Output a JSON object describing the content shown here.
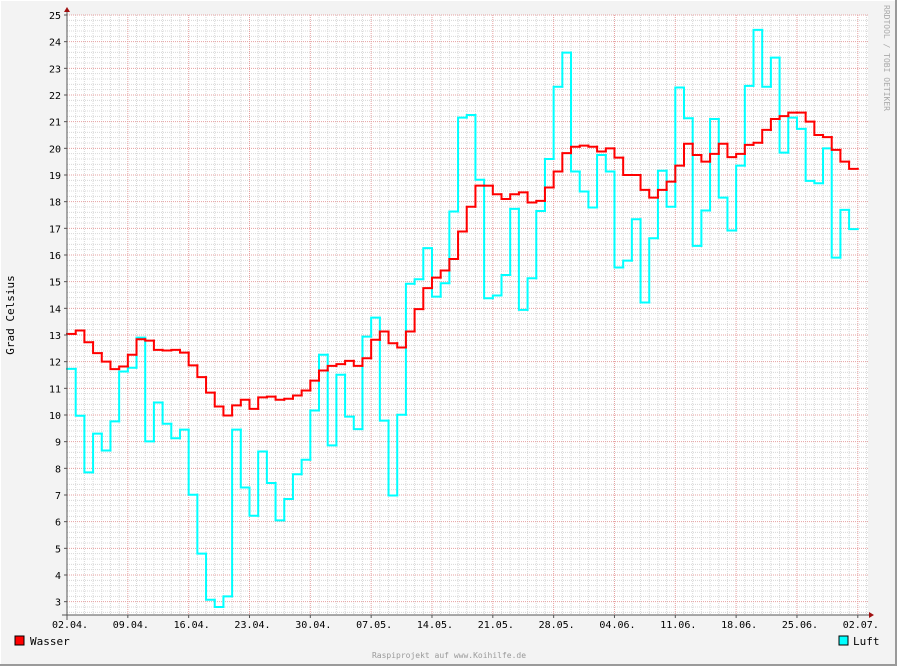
{
  "chart_data": {
    "type": "line",
    "step": true,
    "ylabel": "Grad Celsius",
    "xlabel": "",
    "ylim": [
      2.5,
      25
    ],
    "yticks": [
      3,
      4,
      5,
      6,
      7,
      8,
      9,
      10,
      11,
      12,
      13,
      14,
      15,
      16,
      17,
      18,
      19,
      20,
      21,
      22,
      23,
      24,
      25
    ],
    "xtick_labels": [
      "02.04.",
      "09.04.",
      "16.04.",
      "23.04.",
      "30.04.",
      "07.05.",
      "14.05.",
      "21.05.",
      "28.05.",
      "04.06.",
      "11.06.",
      "18.06.",
      "25.06.",
      "02.07."
    ],
    "grid": true,
    "legend_placement": "bottom",
    "x": [
      "02.04.",
      "03.04.",
      "04.04.",
      "05.04.",
      "06.04.",
      "07.04.",
      "08.04.",
      "09.04.",
      "10.04.",
      "11.04.",
      "12.04.",
      "13.04.",
      "14.04.",
      "15.04.",
      "16.04.",
      "17.04.",
      "18.04.",
      "19.04.",
      "20.04.",
      "21.04.",
      "22.04.",
      "23.04.",
      "24.04.",
      "25.04.",
      "26.04.",
      "27.04.",
      "28.04.",
      "29.04.",
      "30.04.",
      "01.05.",
      "02.05.",
      "03.05.",
      "04.05.",
      "05.05.",
      "06.05.",
      "07.05.",
      "08.05.",
      "09.05.",
      "10.05.",
      "11.05.",
      "12.05.",
      "13.05.",
      "14.05.",
      "15.05.",
      "16.05.",
      "17.05.",
      "18.05.",
      "19.05.",
      "20.05.",
      "21.05.",
      "22.05.",
      "23.05.",
      "24.05.",
      "25.05.",
      "26.05.",
      "27.05.",
      "28.05.",
      "29.05.",
      "30.05.",
      "31.05.",
      "01.06.",
      "02.06.",
      "03.06.",
      "04.06.",
      "05.06.",
      "06.06.",
      "07.06.",
      "08.06.",
      "09.06.",
      "10.06.",
      "11.06.",
      "12.06.",
      "13.06.",
      "14.06.",
      "15.06.",
      "16.06.",
      "17.06.",
      "18.06.",
      "19.06.",
      "20.06.",
      "21.06.",
      "22.06.",
      "23.06.",
      "24.06.",
      "25.06.",
      "26.06.",
      "27.06.",
      "28.06.",
      "29.06.",
      "30.06.",
      "01.07."
    ],
    "series": [
      {
        "name": "Wasser",
        "color": "#ff0000",
        "values": [
          13.04,
          13.17,
          12.73,
          12.32,
          12.0,
          11.72,
          11.82,
          12.26,
          12.84,
          12.79,
          12.44,
          12.42,
          12.44,
          12.34,
          11.86,
          11.42,
          10.84,
          10.32,
          9.98,
          10.36,
          10.57,
          10.23,
          10.66,
          10.69,
          10.57,
          10.61,
          10.73,
          10.92,
          11.29,
          11.67,
          11.84,
          11.91,
          12.03,
          11.84,
          12.13,
          12.82,
          13.13,
          12.69,
          12.53,
          13.13,
          13.97,
          14.76,
          15.15,
          15.42,
          15.85,
          16.88,
          17.81,
          18.6,
          18.6,
          18.28,
          18.1,
          18.28,
          18.35,
          17.97,
          18.03,
          18.53,
          19.13,
          19.82,
          20.06,
          20.1,
          20.06,
          19.88,
          20.0,
          19.65,
          19.0,
          19.0,
          18.44,
          18.15,
          18.44,
          18.75,
          19.35,
          20.17,
          19.75,
          19.5,
          19.79,
          20.17,
          19.67,
          19.79,
          20.13,
          20.21,
          20.69,
          21.1,
          21.21,
          21.34,
          21.34,
          21.0,
          20.5,
          20.42,
          19.94,
          19.5,
          19.23
        ]
      },
      {
        "name": "Luft",
        "color": "#00ffff",
        "values": [
          11.73,
          9.97,
          7.85,
          9.3,
          8.67,
          9.76,
          11.63,
          11.77,
          12.9,
          9.01,
          10.47,
          9.67,
          9.13,
          9.45,
          7.01,
          4.8,
          3.07,
          2.8,
          3.2,
          9.45,
          7.28,
          6.22,
          8.63,
          7.45,
          6.05,
          6.85,
          7.78,
          8.32,
          10.17,
          12.26,
          8.86,
          11.51,
          9.94,
          9.47,
          12.94,
          13.65,
          9.79,
          6.98,
          10.01,
          14.92,
          15.09,
          16.26,
          14.44,
          14.94,
          17.63,
          21.15,
          21.25,
          18.82,
          14.38,
          14.48,
          15.25,
          17.73,
          13.94,
          15.13,
          17.65,
          19.6,
          22.31,
          23.59,
          19.13,
          18.38,
          17.78,
          19.75,
          19.13,
          15.53,
          15.79,
          17.34,
          14.22,
          16.63,
          19.16,
          17.81,
          22.28,
          21.13,
          16.34,
          17.67,
          21.1,
          18.15,
          16.92,
          19.35,
          22.34,
          24.44,
          22.31,
          23.4,
          19.84,
          21.15,
          20.73,
          18.78,
          18.69,
          20.0,
          15.9,
          17.69,
          16.97
        ]
      }
    ]
  },
  "legend": {
    "wasser": "Wasser",
    "luft": "Luft"
  },
  "watermark": "RRDTOOL / TOBI OETIKER",
  "footer": "Raspiprojekt auf www.Koihilfe.de"
}
